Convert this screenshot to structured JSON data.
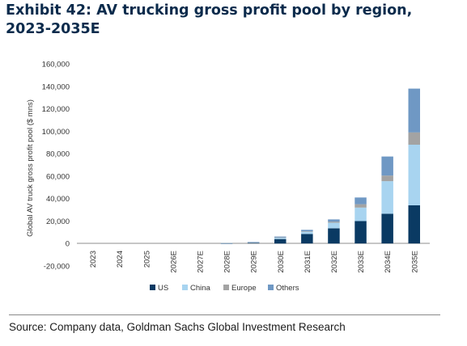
{
  "title": "Exhibit 42: AV trucking gross profit pool by region, 2023-2035E",
  "source": "Source: Company data, Goldman Sachs Global Investment Research",
  "chart_data": {
    "type": "bar",
    "stacked": true,
    "ylabel": "Global AV truck gross profit pool ($ mns)",
    "ylim": [
      -20000,
      160000
    ],
    "yticks": [
      -20000,
      0,
      20000,
      40000,
      60000,
      80000,
      100000,
      120000,
      140000,
      160000
    ],
    "ytick_labels": [
      "-20,000",
      "0",
      "20,000",
      "40,000",
      "60,000",
      "80,000",
      "100,000",
      "120,000",
      "140,000",
      "160,000"
    ],
    "categories": [
      "2023",
      "2024",
      "2025",
      "2026E",
      "2027E",
      "2028E",
      "2029E",
      "2030E",
      "2031E",
      "2032E",
      "2033E",
      "2034E",
      "2035E"
    ],
    "series": [
      {
        "name": "US",
        "color": "#0a3a63",
        "values": [
          0,
          0,
          0,
          0,
          0,
          100,
          600,
          4000,
          8500,
          13500,
          20000,
          26500,
          34000
        ]
      },
      {
        "name": "China",
        "color": "#a8d4f0",
        "values": [
          0,
          0,
          0,
          0,
          0,
          100,
          300,
          1200,
          2000,
          5000,
          12000,
          29000,
          54000
        ]
      },
      {
        "name": "Europe",
        "color": "#a3a3a3",
        "values": [
          0,
          0,
          0,
          0,
          0,
          50,
          100,
          300,
          500,
          1000,
          3000,
          5000,
          11000
        ]
      },
      {
        "name": "Others",
        "color": "#6f98c4",
        "values": [
          0,
          0,
          0,
          0,
          0,
          50,
          300,
          700,
          1200,
          2000,
          6000,
          17000,
          39000
        ]
      }
    ],
    "legend_position": "bottom",
    "grid": false
  }
}
